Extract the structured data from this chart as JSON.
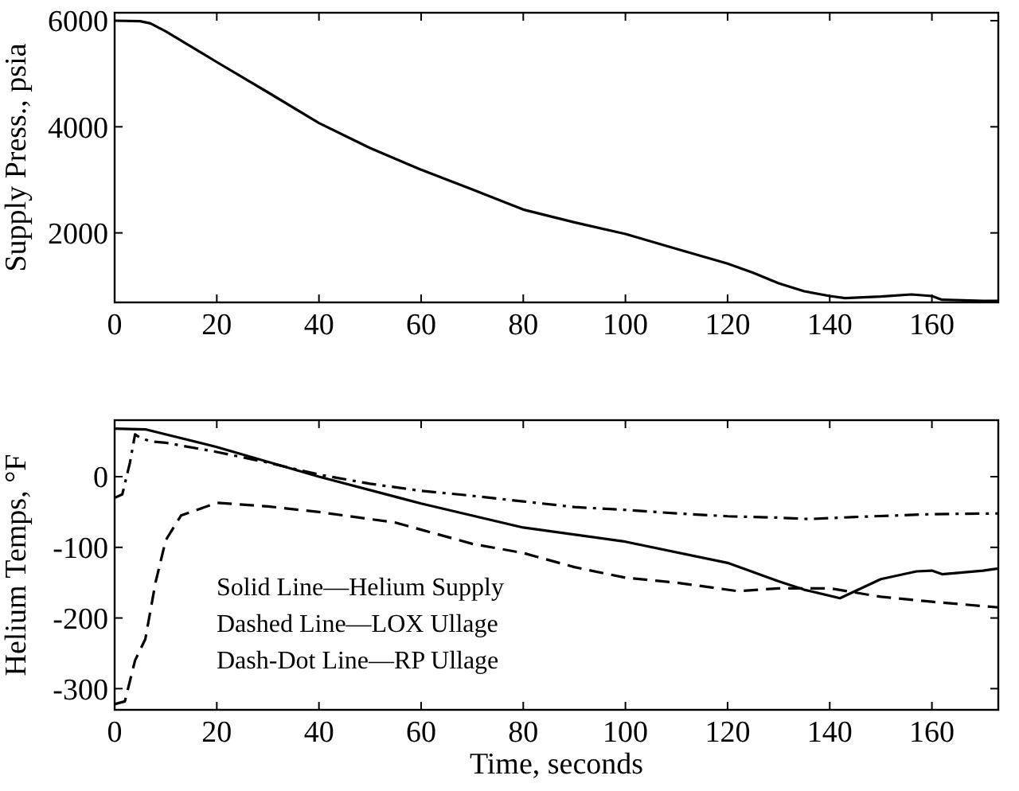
{
  "chart_data": [
    {
      "type": "line",
      "ylabel": "Supply Press., psia",
      "xlim": [
        0,
        173
      ],
      "ylim": [
        690,
        6150
      ],
      "xticks": [
        0,
        20,
        40,
        60,
        80,
        100,
        120,
        140,
        160
      ],
      "yticks": [
        2000,
        4000,
        6000
      ],
      "grid": false,
      "marker": "none",
      "series": [
        {
          "color": "#000000",
          "line_style": "solid",
          "x": [
            0,
            5,
            7,
            10,
            20,
            30,
            40,
            50,
            60,
            70,
            80,
            90,
            100,
            110,
            120,
            125,
            130,
            135,
            140,
            143,
            150,
            156,
            160,
            162,
            170,
            173
          ],
          "values": [
            6000,
            5990,
            5950,
            5800,
            5220,
            4650,
            4070,
            3600,
            3190,
            2820,
            2440,
            2200,
            1980,
            1700,
            1420,
            1250,
            1050,
            900,
            810,
            770,
            800,
            840,
            810,
            740,
            720,
            720
          ]
        }
      ]
    },
    {
      "type": "line",
      "ylabel": "Helium Temps, °F",
      "xlabel": "Time, seconds",
      "xlim": [
        0,
        173
      ],
      "ylim": [
        -330,
        80
      ],
      "xticks": [
        0,
        20,
        40,
        60,
        80,
        100,
        120,
        140,
        160
      ],
      "yticks": [
        -300,
        -200,
        -100,
        0
      ],
      "grid": false,
      "marker": "none",
      "annotations": [
        "Solid Line—Helium Supply",
        "Dashed Line—LOX Ullage",
        "Dash-Dot Line—RP Ullage"
      ],
      "series": [
        {
          "color": "#000000",
          "line_style": "solid",
          "x": [
            0,
            6,
            20,
            40,
            60,
            80,
            100,
            120,
            130,
            135,
            142,
            150,
            157,
            160,
            162,
            170,
            173
          ],
          "values": [
            68,
            67,
            42,
            0,
            -38,
            -72,
            -92,
            -122,
            -148,
            -160,
            -172,
            -145,
            -134,
            -133,
            -138,
            -133,
            -130
          ]
        },
        {
          "color": "#000000",
          "line_style": "dashed",
          "x": [
            0,
            2,
            4,
            6,
            8,
            10,
            13,
            20,
            30,
            40,
            55,
            60,
            70,
            80,
            90,
            100,
            110,
            122,
            130,
            140,
            150,
            160,
            173
          ],
          "values": [
            -322,
            -318,
            -260,
            -230,
            -150,
            -90,
            -55,
            -37,
            -42,
            -50,
            -65,
            -75,
            -95,
            -108,
            -128,
            -143,
            -150,
            -162,
            -158,
            -158,
            -170,
            -177,
            -185
          ]
        },
        {
          "color": "#000000",
          "line_style": "dashdot",
          "x": [
            0,
            1.5,
            3,
            4,
            5,
            7,
            10,
            20,
            30,
            40,
            50,
            60,
            70,
            80,
            90,
            100,
            110,
            120,
            130,
            136,
            145,
            160,
            173
          ],
          "values": [
            -30,
            -25,
            20,
            60,
            55,
            50,
            48,
            35,
            20,
            3,
            -10,
            -20,
            -27,
            -35,
            -43,
            -47,
            -52,
            -56,
            -58,
            -60,
            -57,
            -53,
            -52
          ]
        }
      ]
    }
  ]
}
